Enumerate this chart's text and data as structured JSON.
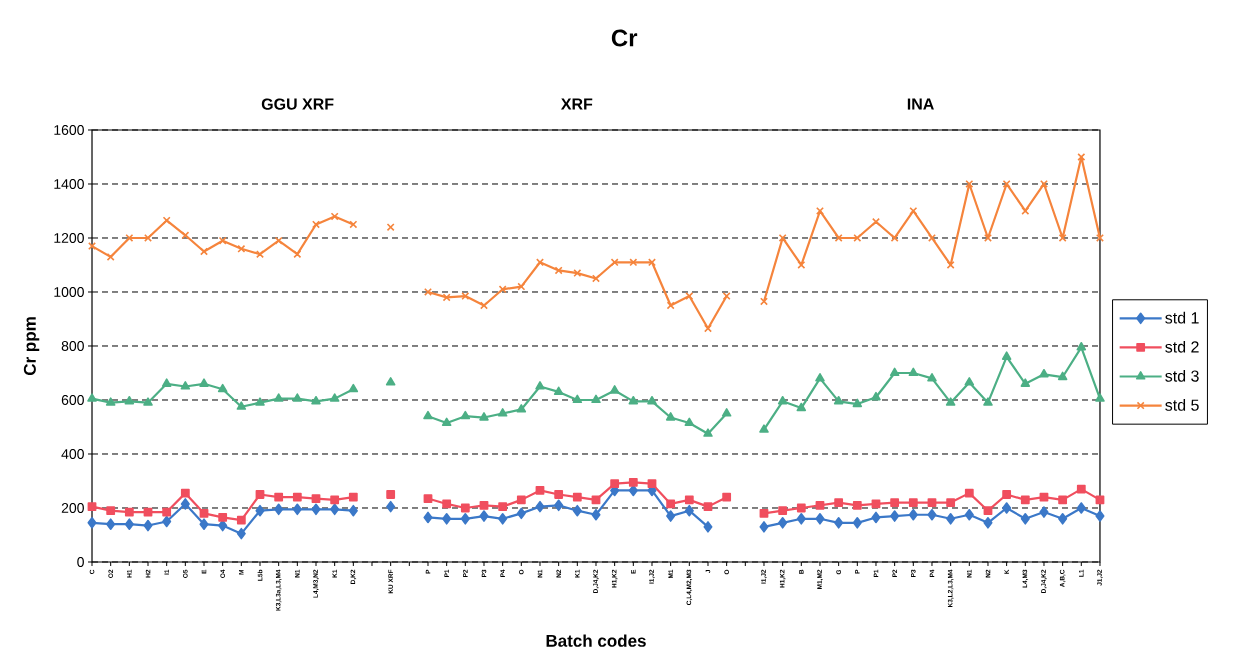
{
  "chart_data": {
    "type": "line",
    "title": "Cr",
    "xlabel": "Batch codes",
    "ylabel": "Cr ppm",
    "annotations": [
      "GGU XRF",
      "XRF",
      "INA"
    ],
    "categories": [
      "C",
      "O2",
      "H1",
      "H2",
      "I1",
      "O5",
      "E",
      "O4",
      "M",
      "L5b",
      "K3,L3a,L3,M4",
      "N1",
      "L4,M3,N2",
      "K1",
      "D,K2",
      null,
      "KU XRF",
      null,
      "P",
      "P1",
      "P2",
      "P3",
      "P4",
      "O",
      "N1",
      "N2",
      "K1",
      "D,J4,K2",
      "H1,K2",
      "E",
      "I1,J2",
      "M1",
      "C,L4,M2,M3",
      "J",
      "O",
      null,
      "I1,J2",
      "H1,K2",
      "B",
      "M1,M2",
      "G",
      "P",
      "P1",
      "P2",
      "P3",
      "P4",
      "K3,L2,L3,M4",
      "N1",
      "N2",
      "K",
      "L4,M3",
      "D,J4,K2",
      "A,B,C",
      "L1",
      "J1,J2"
    ],
    "series": [
      {
        "name": "std 1",
        "color": "#3b78c8",
        "marker": "diamond",
        "values": [
          145,
          140,
          140,
          135,
          150,
          215,
          140,
          135,
          105,
          190,
          195,
          195,
          195,
          195,
          190,
          null,
          205,
          null,
          165,
          160,
          160,
          170,
          160,
          180,
          205,
          210,
          190,
          175,
          265,
          265,
          265,
          170,
          190,
          130,
          null,
          null,
          130,
          145,
          160,
          160,
          145,
          145,
          165,
          170,
          175,
          175,
          160,
          175,
          145,
          200,
          160,
          185,
          160,
          200,
          170
        ]
      },
      {
        "name": "std 2",
        "color": "#f04e5e",
        "marker": "square",
        "values": [
          205,
          190,
          185,
          185,
          185,
          255,
          180,
          165,
          155,
          250,
          240,
          240,
          235,
          230,
          240,
          null,
          250,
          null,
          235,
          215,
          200,
          210,
          205,
          230,
          265,
          250,
          240,
          230,
          290,
          295,
          290,
          215,
          230,
          205,
          240,
          null,
          180,
          190,
          200,
          210,
          220,
          210,
          215,
          220,
          220,
          220,
          220,
          255,
          190,
          250,
          230,
          240,
          230,
          270,
          230
        ]
      },
      {
        "name": "std 3",
        "color": "#4caf85",
        "marker": "triangle",
        "values": [
          605,
          590,
          595,
          590,
          660,
          650,
          660,
          640,
          575,
          590,
          605,
          605,
          595,
          605,
          640,
          null,
          665,
          null,
          540,
          515,
          540,
          535,
          550,
          565,
          650,
          630,
          600,
          600,
          635,
          595,
          595,
          535,
          515,
          475,
          550,
          null,
          490,
          595,
          570,
          680,
          595,
          585,
          610,
          700,
          700,
          680,
          590,
          665,
          590,
          760,
          660,
          695,
          685,
          795,
          605
        ]
      },
      {
        "name": "std 5",
        "color": "#f5843c",
        "marker": "cross",
        "values": [
          1170,
          1130,
          1200,
          1200,
          1265,
          1210,
          1150,
          1190,
          1160,
          1140,
          1190,
          1140,
          1250,
          1280,
          1250,
          null,
          1240,
          null,
          1000,
          980,
          985,
          950,
          1010,
          1020,
          1110,
          1080,
          1070,
          1050,
          1110,
          1110,
          1110,
          950,
          985,
          865,
          985,
          null,
          965,
          1200,
          1100,
          1300,
          1200,
          1200,
          1260,
          1200,
          1300,
          1200,
          1100,
          1400,
          1200,
          1400,
          1300,
          1400,
          1200,
          1500,
          1200
        ]
      }
    ],
    "ylim": [
      0,
      1600
    ],
    "yticks": [
      0,
      200,
      400,
      600,
      800,
      1000,
      1200,
      1400,
      1600
    ],
    "grid": "y",
    "legend": "right",
    "line_style": "solid"
  }
}
